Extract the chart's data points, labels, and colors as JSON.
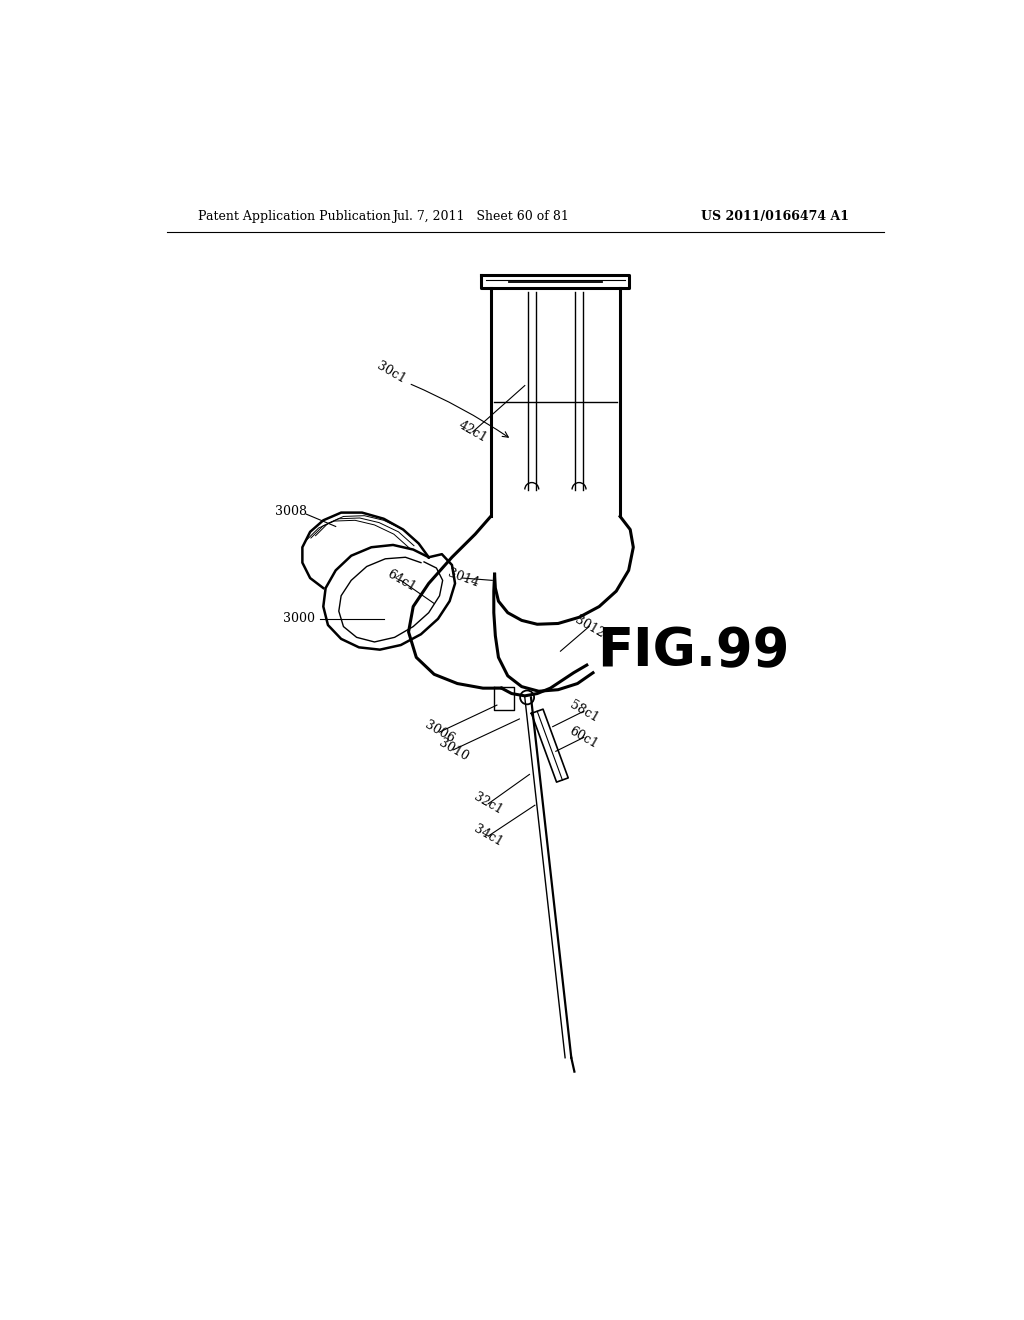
{
  "bg_color": "#ffffff",
  "header_left": "Patent Application Publication",
  "header_mid": "Jul. 7, 2011   Sheet 60 of 81",
  "header_right": "US 2011/0166474 A1",
  "fig_label": "FIG.99",
  "line_color": "#000000",
  "lw_main": 1.8,
  "lw_thick": 2.2,
  "lw_thin": 1.0,
  "header_fontsize": 9,
  "label_fontsize": 9,
  "fig_fontsize": 38
}
